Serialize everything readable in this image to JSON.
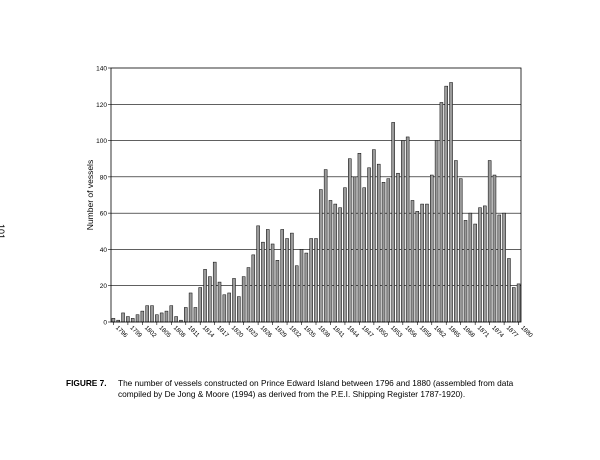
{
  "page": {
    "number": "101"
  },
  "caption": {
    "figure": "FIGURE 7.",
    "line1": "The number of vessels constructed on Prince Edward Island between 1796 and 1880 (assembled from data",
    "line2": "compiled by De Jong & Moore (1994) as derived from the P.E.I. Shipping Register 1787-1920)."
  },
  "chart_data": {
    "type": "bar",
    "title": "",
    "xlabel": "",
    "ylabel": "Number of vessels",
    "ylim": [
      0,
      140
    ],
    "yticks": [
      0,
      20,
      40,
      60,
      80,
      100,
      120,
      140
    ],
    "grid": "horizontal",
    "bar_color": "#9a9a9a",
    "categories": [
      "1796",
      "1797",
      "1798",
      "1799",
      "1800",
      "1801",
      "1802",
      "1803",
      "1804",
      "1805",
      "1806",
      "1807",
      "1808",
      "1809",
      "1810",
      "1811",
      "1812",
      "1813",
      "1814",
      "1815",
      "1816",
      "1817",
      "1818",
      "1819",
      "1820",
      "1821",
      "1822",
      "1823",
      "1824",
      "1825",
      "1826",
      "1827",
      "1828",
      "1829",
      "1830",
      "1831",
      "1832",
      "1833",
      "1834",
      "1835",
      "1836",
      "1837",
      "1838",
      "1839",
      "1840",
      "1841",
      "1842",
      "1843",
      "1844",
      "1845",
      "1846",
      "1847",
      "1848",
      "1849",
      "1850",
      "1851",
      "1852",
      "1853",
      "1854",
      "1855",
      "1856",
      "1857",
      "1858",
      "1859",
      "1860",
      "1861",
      "1862",
      "1863",
      "1864",
      "1865",
      "1866",
      "1867",
      "1868",
      "1869",
      "1870",
      "1871",
      "1872",
      "1873",
      "1874",
      "1875",
      "1876",
      "1877",
      "1878",
      "1879",
      "1880"
    ],
    "tick_labels": [
      "1796",
      "1799",
      "1802",
      "1805",
      "1808",
      "1811",
      "1814",
      "1817",
      "1820",
      "1823",
      "1826",
      "1829",
      "1832",
      "1835",
      "1838",
      "1841",
      "1844",
      "1847",
      "1850",
      "1853",
      "1856",
      "1859",
      "1862",
      "1865",
      "1868",
      "1871",
      "1874",
      "1877",
      "1880"
    ],
    "values": [
      2,
      1,
      5,
      3,
      2,
      4,
      6,
      9,
      9,
      4,
      5,
      6,
      9,
      3,
      1,
      8,
      16,
      8,
      19,
      29,
      25,
      33,
      22,
      15,
      16,
      24,
      14,
      25,
      30,
      37,
      53,
      44,
      51,
      43,
      34,
      51,
      46,
      49,
      31,
      40,
      38,
      46,
      46,
      73,
      84,
      67,
      65,
      63,
      74,
      90,
      80,
      93,
      74,
      85,
      95,
      87,
      77,
      79,
      110,
      82,
      100,
      102,
      67,
      61,
      65,
      65,
      81,
      100,
      121,
      130,
      132,
      89,
      79,
      56,
      60,
      54,
      63,
      64,
      89,
      81,
      59,
      60,
      35,
      19,
      21
    ]
  }
}
